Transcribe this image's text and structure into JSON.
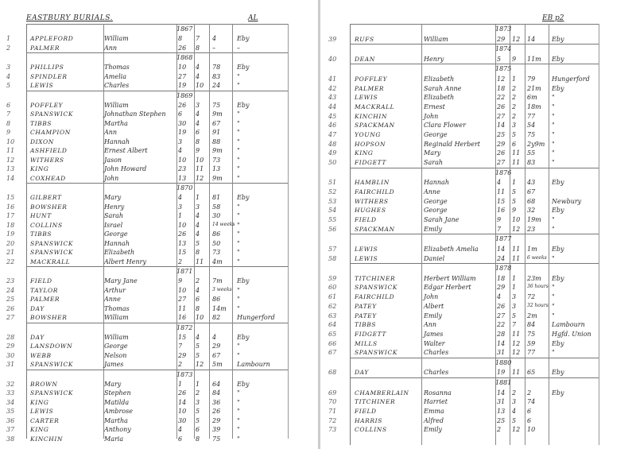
{
  "left_page": {
    "title": "EASTBURY BURIALS.",
    "ref": "AL",
    "groups": [
      {
        "year": "1867",
        "rows": [
          [
            "1",
            "APPLEFORD",
            "William",
            "8",
            "7",
            "4",
            "Eby"
          ],
          [
            "2",
            "PALMER",
            "Ann",
            "26",
            "8",
            "–",
            "–"
          ]
        ]
      },
      {
        "year": "1868",
        "rows": [
          [
            "3",
            "PHILLIPS",
            "Thomas",
            "10",
            "4",
            "78",
            "Eby"
          ],
          [
            "4",
            "SPINDLER",
            "Amelia",
            "27",
            "4",
            "83",
            "\""
          ],
          [
            "5",
            "LEWIS",
            "Charles",
            "19",
            "10",
            "24",
            "\""
          ]
        ]
      },
      {
        "year": "1869",
        "rows": [
          [
            "6",
            "POFFLEY",
            "William",
            "26",
            "3",
            "75",
            "Eby"
          ],
          [
            "7",
            "SPANSWICK",
            "Johnathan Stephen",
            "6",
            "4",
            "9m",
            "\""
          ],
          [
            "8",
            "TIBBS",
            "Martha",
            "30",
            "4",
            "67",
            "\""
          ],
          [
            "9",
            "CHAMPION",
            "Ann",
            "19",
            "6",
            "91",
            "\""
          ],
          [
            "10",
            "DIXON",
            "Hannah",
            "3",
            "8",
            "88",
            "\""
          ],
          [
            "11",
            "ASHFIELD",
            "Ernest Albert",
            "4",
            "9",
            "9m",
            "\""
          ],
          [
            "12",
            "WITHERS",
            "Jason",
            "10",
            "10",
            "73",
            "\""
          ],
          [
            "13",
            "KING",
            "John Howard",
            "23",
            "11",
            "13",
            "\""
          ],
          [
            "14",
            "COXHEAD",
            "John",
            "13",
            "12",
            "9m",
            "\""
          ]
        ]
      },
      {
        "year": "1870",
        "rows": [
          [
            "15",
            "GILBERT",
            "Mary",
            "4",
            "1",
            "81",
            "Eby"
          ],
          [
            "16",
            "BOWSHER",
            "Henry",
            "3",
            "3",
            "58",
            "\""
          ],
          [
            "17",
            "HUNT",
            "Sarah",
            "1",
            "4",
            "30",
            "\""
          ],
          [
            "18",
            "COLLINS",
            "Israel",
            "10",
            "4",
            "14 weeks",
            "\""
          ],
          [
            "19",
            "TIBBS",
            "George",
            "26",
            "4",
            "86",
            "\""
          ],
          [
            "20",
            "SPANSWICK",
            "Hannah",
            "13",
            "5",
            "50",
            "\""
          ],
          [
            "21",
            "SPANSWICK",
            "Elizabeth",
            "15",
            "8",
            "73",
            "\""
          ],
          [
            "22",
            "MACKRALL",
            "Albert Henry",
            "2",
            "11",
            "4m",
            "\""
          ]
        ]
      },
      {
        "year": "1871",
        "rows": [
          [
            "23",
            "FIELD",
            "Mary Jane",
            "9",
            "2",
            "7m",
            "Eby"
          ],
          [
            "24",
            "TAYLOR",
            "Arthur",
            "10",
            "4",
            "3 weeks",
            "\""
          ],
          [
            "25",
            "PALMER",
            "Anne",
            "27",
            "6",
            "86",
            "\""
          ],
          [
            "26",
            "DAY",
            "Thomas",
            "11",
            "8",
            "14m",
            "\""
          ],
          [
            "27",
            "BOWSHER",
            "William",
            "16",
            "10",
            "82",
            "Hungerford"
          ]
        ]
      },
      {
        "year": "1872",
        "rows": [
          [
            "28",
            "DAY",
            "William",
            "15",
            "4",
            "4",
            "Eby"
          ],
          [
            "29",
            "LANSDOWN",
            "George",
            "7",
            "5",
            "29",
            "\""
          ],
          [
            "30",
            "WEBB",
            "Nelson",
            "29",
            "5",
            "67",
            "\""
          ],
          [
            "31",
            "SPANSWICK",
            "James",
            "2",
            "12",
            "5m",
            "Lambourn"
          ]
        ]
      },
      {
        "year": "1873",
        "rows": [
          [
            "32",
            "BROWN",
            "Mary",
            "1",
            "1",
            "64",
            "Eby"
          ],
          [
            "33",
            "SPANSWICK",
            "Stephen",
            "26",
            "2",
            "84",
            "\""
          ],
          [
            "34",
            "KING",
            "Matilda",
            "14",
            "3",
            "36",
            "\""
          ],
          [
            "35",
            "LEWIS",
            "Ambrose",
            "10",
            "5",
            "26",
            "\""
          ],
          [
            "36",
            "CARTER",
            "Martha",
            "30",
            "5",
            "29",
            "\""
          ],
          [
            "37",
            "KING",
            "Anthony",
            "4",
            "6",
            "39",
            "\""
          ],
          [
            "38",
            "KINCHIN",
            "Maria",
            "6",
            "8",
            "75",
            "\""
          ]
        ]
      }
    ]
  },
  "right_page": {
    "ref": "EB p2",
    "groups": [
      {
        "year": "1873",
        "rows": [
          [
            "39",
            "RUFS",
            "William",
            "29",
            "12",
            "14",
            "Eby"
          ]
        ]
      },
      {
        "year": "1874",
        "rows": [
          [
            "40",
            "DEAN",
            "Henry",
            "5",
            "9",
            "11m",
            "Eby"
          ]
        ]
      },
      {
        "year": "1875",
        "rows": [
          [
            "41",
            "POFFLEY",
            "Elizabeth",
            "12",
            "1",
            "79",
            "Hungerford"
          ],
          [
            "42",
            "PALMER",
            "Sarah Anne",
            "18",
            "2",
            "21m",
            "Eby"
          ],
          [
            "43",
            "LEWIS",
            "Elizabeth",
            "22",
            "2",
            "6m",
            "\""
          ],
          [
            "44",
            "MACKRALL",
            "Ernest",
            "26",
            "2",
            "18m",
            "\""
          ],
          [
            "45",
            "KINCHIN",
            "John",
            "27",
            "2",
            "77",
            "\""
          ],
          [
            "46",
            "SPACKMAN",
            "Clara Flower",
            "14",
            "3",
            "54",
            "\""
          ],
          [
            "47",
            "YOUNG",
            "George",
            "25",
            "5",
            "75",
            "\""
          ],
          [
            "48",
            "HOPSON",
            "Reginald Herbert",
            "29",
            "6",
            "2y9m",
            "\""
          ],
          [
            "49",
            "KING",
            "Mary",
            "26",
            "11",
            "55",
            "\""
          ],
          [
            "50",
            "FIDGETT",
            "Sarah",
            "27",
            "11",
            "83",
            "\""
          ]
        ]
      },
      {
        "year": "1876",
        "rows": [
          [
            "51",
            "HAMBLIN",
            "Hannah",
            "4",
            "1",
            "43",
            "Eby"
          ],
          [
            "52",
            "FAIRCHILD",
            "Anne",
            "11",
            "5",
            "67",
            ""
          ],
          [
            "53",
            "WITHERS",
            "George",
            "15",
            "5",
            "68",
            "Newbury"
          ],
          [
            "54",
            "HUGHES",
            "George",
            "16",
            "9",
            "32",
            "Eby"
          ],
          [
            "55",
            "FIELD",
            "Sarah Jane",
            "9",
            "10",
            "19m",
            "\""
          ],
          [
            "56",
            "SPACKMAN",
            "Emily",
            "7",
            "12",
            "23",
            "\""
          ]
        ]
      },
      {
        "year": "1877",
        "rows": [
          [
            "57",
            "LEWIS",
            "Elizabeth Amelia",
            "14",
            "11",
            "1m",
            "Eby"
          ],
          [
            "58",
            "LEWIS",
            "Daniel",
            "24",
            "11",
            "6 weeks",
            "\""
          ]
        ]
      },
      {
        "year": "1878",
        "rows": [
          [
            "59",
            "TITCHINER",
            "Herbert William",
            "18",
            "1",
            "23m",
            "Eby"
          ],
          [
            "60",
            "SPANSWICK",
            "Edgar Herbert",
            "29",
            "1",
            "36 hours",
            "\""
          ],
          [
            "61",
            "FAIRCHILD",
            "John",
            "4",
            "3",
            "72",
            "\""
          ],
          [
            "62",
            "PATEY",
            "Albert",
            "26",
            "3",
            "32 hours",
            "\""
          ],
          [
            "63",
            "PATEY",
            "Emily",
            "27",
            "5",
            "2m",
            "\""
          ],
          [
            "64",
            "TIBBS",
            "Ann",
            "22",
            "7",
            "84",
            "Lambourn"
          ],
          [
            "65",
            "FIDGETT",
            "James",
            "28",
            "11",
            "75",
            "Hgfd. Union"
          ],
          [
            "66",
            "MILLS",
            "Walter",
            "14",
            "12",
            "59",
            "Eby"
          ],
          [
            "67",
            "SPANSWICK",
            "Charles",
            "31",
            "12",
            "77",
            "\""
          ]
        ]
      },
      {
        "year": "1880",
        "rows": [
          [
            "68",
            "DAY",
            "Charles",
            "19",
            "11",
            "65",
            "Eby"
          ]
        ]
      },
      {
        "year": "1881",
        "rows": [
          [
            "69",
            "CHAMBERLAIN",
            "Rosanna",
            "14",
            "2",
            "2",
            "Eby"
          ],
          [
            "70",
            "TITCHINER",
            "Harriet",
            "31",
            "3",
            "74",
            ""
          ],
          [
            "71",
            "FIELD",
            "Emma",
            "13",
            "4",
            "6",
            ""
          ],
          [
            "72",
            "HARRIS",
            "Alfred",
            "25",
            "5",
            "6",
            ""
          ],
          [
            "73",
            "COLLINS",
            "Emily",
            "2",
            "12",
            "10",
            ""
          ]
        ]
      }
    ]
  }
}
